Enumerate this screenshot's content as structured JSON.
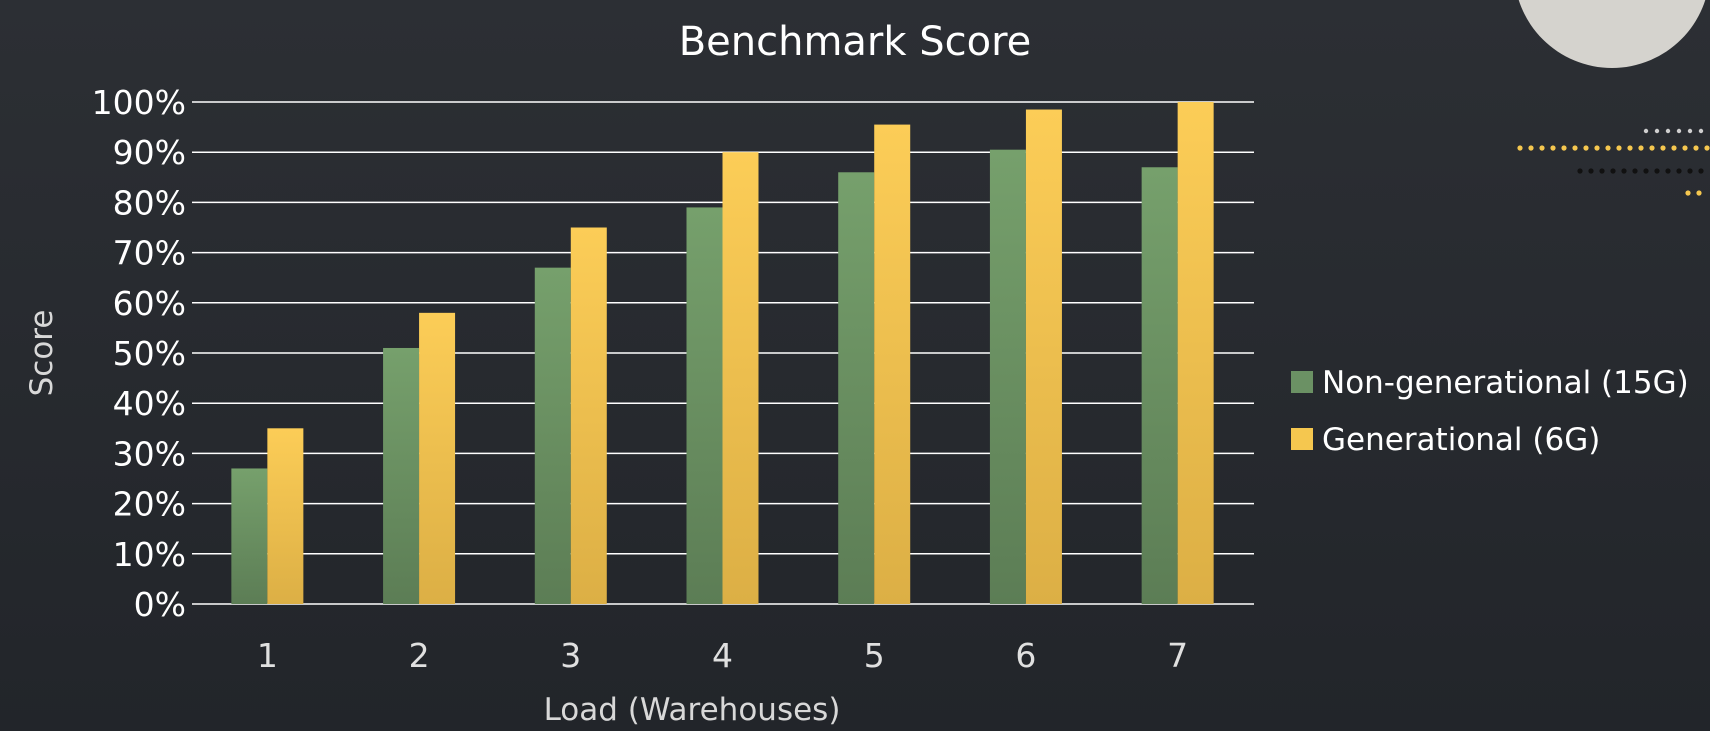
{
  "chart_data": {
    "type": "bar",
    "title": "Benchmark Score",
    "xlabel": "Load (Warehouses)",
    "ylabel": "Score",
    "categories": [
      "1",
      "2",
      "3",
      "4",
      "5",
      "6",
      "7"
    ],
    "y_ticks": [
      "0%",
      "10%",
      "20%",
      "30%",
      "40%",
      "50%",
      "60%",
      "70%",
      "80%",
      "90%",
      "100%"
    ],
    "ylim": [
      0,
      100
    ],
    "grid": true,
    "legend_position": "right",
    "series": [
      {
        "name": "Non-generational (15G)",
        "color": "#6b9164",
        "values": [
          27,
          51,
          67,
          79,
          86,
          90.5,
          87
        ]
      },
      {
        "name": "Generational (6G)",
        "color": "#f5c74f",
        "values": [
          35,
          58,
          75,
          90,
          95.5,
          98.5,
          100
        ]
      }
    ]
  }
}
